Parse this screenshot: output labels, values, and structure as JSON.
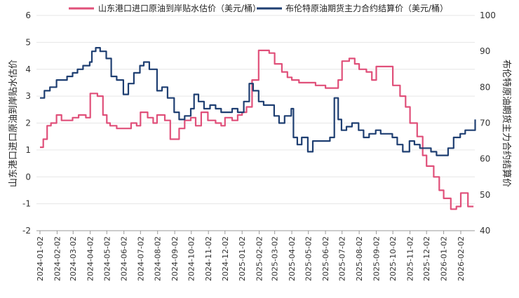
{
  "chart_data": {
    "type": "line",
    "legend_position": "top",
    "grid": true,
    "xlabel": "",
    "ylabel_left": "山东港口进口原油到岸贴水估价",
    "ylabel_right": "布伦特原油期货主力合约结算价",
    "y_left_range": [
      -2,
      6
    ],
    "y_right_range": [
      40,
      100
    ],
    "y_left_ticks": [
      "-2",
      "-1",
      "0",
      "1",
      "2",
      "3",
      "4",
      "5",
      "6"
    ],
    "y_right_ticks": [
      "40",
      "50",
      "60",
      "70",
      "80",
      "90",
      "100"
    ],
    "x_ticks": [
      "2024-01-02",
      "2024-02-02",
      "2024-03-02",
      "2024-04-02",
      "2024-05-02",
      "2024-06-02",
      "2024-07-02",
      "2024-08-02",
      "2024-09-02",
      "2024-10-02",
      "2024-11-02",
      "2024-12-02",
      "2025-01-02",
      "2025-02-02",
      "2025-03-02",
      "2025-04-02",
      "2025-05-02",
      "2025-06-02",
      "2025-07-02",
      "2025-08-02",
      "2025-09-02",
      "2025-10-02",
      "2025-11-02",
      "2025-12-02",
      "2026-01-02",
      "2026-02-02"
    ],
    "series": [
      {
        "name": "山东港口进口原油到岸贴水估价（美元/桶）",
        "axis": "left",
        "color": "#e0507a",
        "x": [
          "2024-01-02",
          "2024-01-08",
          "2024-01-15",
          "2024-01-22",
          "2024-02-01",
          "2024-02-10",
          "2024-02-20",
          "2024-03-01",
          "2024-03-12",
          "2024-03-25",
          "2024-04-02",
          "2024-04-15",
          "2024-04-25",
          "2024-05-02",
          "2024-05-08",
          "2024-05-20",
          "2024-06-01",
          "2024-06-15",
          "2024-06-25",
          "2024-07-02",
          "2024-07-15",
          "2024-07-25",
          "2024-08-01",
          "2024-08-15",
          "2024-08-25",
          "2024-09-02",
          "2024-09-10",
          "2024-09-20",
          "2024-10-01",
          "2024-10-10",
          "2024-10-20",
          "2024-11-01",
          "2024-11-15",
          "2024-11-25",
          "2024-12-02",
          "2024-12-15",
          "2024-12-25",
          "2025-01-02",
          "2025-01-10",
          "2025-01-20",
          "2025-02-01",
          "2025-02-10",
          "2025-02-20",
          "2025-03-02",
          "2025-03-15",
          "2025-03-25",
          "2025-04-02",
          "2025-04-15",
          "2025-04-25",
          "2025-05-02",
          "2025-05-15",
          "2025-05-25",
          "2025-06-02",
          "2025-06-15",
          "2025-06-25",
          "2025-07-02",
          "2025-07-15",
          "2025-07-25",
          "2025-08-02",
          "2025-08-15",
          "2025-08-25",
          "2025-09-02",
          "2025-09-15",
          "2025-09-25",
          "2025-10-02",
          "2025-10-15",
          "2025-10-25",
          "2025-11-02",
          "2025-11-15",
          "2025-11-25",
          "2025-12-02",
          "2025-12-15",
          "2025-12-25",
          "2026-01-02",
          "2026-01-15",
          "2026-01-25",
          "2026-02-02",
          "2026-02-15",
          "2026-02-25"
        ],
        "values": [
          1.1,
          1.4,
          1.9,
          2.0,
          2.3,
          2.1,
          2.1,
          2.2,
          2.3,
          2.2,
          3.1,
          3.0,
          2.3,
          2.0,
          1.9,
          1.8,
          1.8,
          2.0,
          1.9,
          2.4,
          2.2,
          2.0,
          2.3,
          2.1,
          1.4,
          1.4,
          1.8,
          2.1,
          2.2,
          1.9,
          2.4,
          2.1,
          2.0,
          1.9,
          2.2,
          2.1,
          2.3,
          2.4,
          2.6,
          3.6,
          4.7,
          4.7,
          4.6,
          4.2,
          3.9,
          3.7,
          3.6,
          3.5,
          3.5,
          3.5,
          3.4,
          3.4,
          3.3,
          3.3,
          3.6,
          4.3,
          4.4,
          4.2,
          4.0,
          3.9,
          3.6,
          4.1,
          4.1,
          4.1,
          3.4,
          3.0,
          2.6,
          2.0,
          1.5,
          0.8,
          0.4,
          0.0,
          -0.5,
          -0.8,
          -1.2,
          -1.1,
          -0.6,
          -1.1,
          -1.1
        ]
      },
      {
        "name": "布伦特原油期货主力合约结算价（美元/桶）",
        "axis": "right",
        "color": "#1f3f72",
        "x": [
          "2024-01-02",
          "2024-01-10",
          "2024-01-20",
          "2024-02-01",
          "2024-02-10",
          "2024-02-20",
          "2024-03-01",
          "2024-03-10",
          "2024-03-20",
          "2024-04-01",
          "2024-04-05",
          "2024-04-12",
          "2024-04-20",
          "2024-05-01",
          "2024-05-10",
          "2024-05-20",
          "2024-06-01",
          "2024-06-10",
          "2024-06-20",
          "2024-07-01",
          "2024-07-08",
          "2024-07-18",
          "2024-08-01",
          "2024-08-10",
          "2024-08-20",
          "2024-09-01",
          "2024-09-10",
          "2024-09-20",
          "2024-10-01",
          "2024-10-07",
          "2024-10-15",
          "2024-10-25",
          "2024-11-05",
          "2024-11-15",
          "2024-11-25",
          "2024-12-05",
          "2024-12-15",
          "2024-12-25",
          "2025-01-05",
          "2025-01-15",
          "2025-01-22",
          "2025-02-01",
          "2025-02-10",
          "2025-02-20",
          "2025-03-01",
          "2025-03-10",
          "2025-03-20",
          "2025-04-01",
          "2025-04-05",
          "2025-04-12",
          "2025-04-20",
          "2025-05-01",
          "2025-05-10",
          "2025-05-20",
          "2025-06-01",
          "2025-06-10",
          "2025-06-18",
          "2025-06-25",
          "2025-07-01",
          "2025-07-10",
          "2025-07-20",
          "2025-08-01",
          "2025-08-10",
          "2025-08-20",
          "2025-09-01",
          "2025-09-10",
          "2025-09-20",
          "2025-10-01",
          "2025-10-10",
          "2025-10-20",
          "2025-11-01",
          "2025-11-10",
          "2025-11-20",
          "2025-12-01",
          "2025-12-10",
          "2025-12-20",
          "2026-01-01",
          "2026-01-10",
          "2026-01-20",
          "2026-02-01",
          "2026-02-10",
          "2026-02-20",
          "2026-02-28"
        ],
        "values": [
          77,
          79,
          80,
          82,
          82,
          83,
          84,
          85,
          86,
          87,
          90,
          91,
          90,
          88,
          83,
          82,
          78,
          81,
          84,
          86,
          87,
          85,
          79,
          80,
          77,
          73,
          71,
          72,
          74,
          78,
          76,
          74,
          75,
          74,
          73,
          73,
          74,
          73,
          76,
          81,
          79,
          76,
          75,
          75,
          72,
          70,
          72,
          74,
          66,
          64,
          66,
          62,
          65,
          65,
          65,
          66,
          77,
          71,
          68,
          69,
          70,
          68,
          66,
          67,
          68,
          67,
          67,
          66,
          64,
          62,
          65,
          64,
          63,
          63,
          62,
          61,
          61,
          63,
          66,
          67,
          68,
          68,
          71
        ]
      }
    ]
  }
}
